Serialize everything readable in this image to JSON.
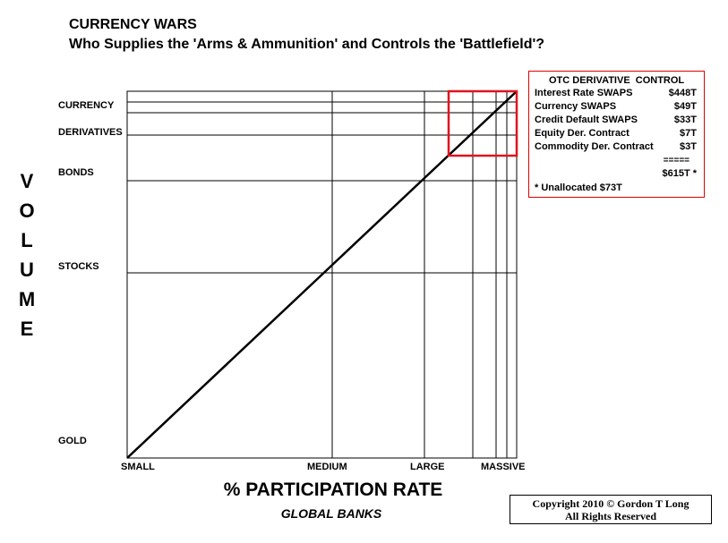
{
  "header": {
    "title": "CURRENCY WARS",
    "subtitle": "Who Supplies the 'Arms & Ammunition' and Controls the 'Battlefield'?"
  },
  "y_axis": {
    "title": "VOLUME",
    "labels": [
      "CURRENCY",
      "DERIVATIVES",
      "BONDS",
      "STOCKS",
      "GOLD"
    ]
  },
  "x_axis": {
    "title": "% PARTICIPATION RATE",
    "subtitle": "GLOBAL BANKS",
    "labels": [
      "SMALL",
      "MEDIUM",
      "LARGE",
      "MASSIVE"
    ]
  },
  "otc_box": {
    "title": "OTC DERIVATIVE  CONTROL",
    "rows": [
      [
        "Interest Rate SWAPS",
        "$448T"
      ],
      [
        "Currency SWAPS",
        "$49T"
      ],
      [
        "Credit Default SWAPS",
        "$33T"
      ],
      [
        "Equity Der. Contract",
        "$7T"
      ],
      [
        "Commodity Der. Contract",
        "$3T"
      ]
    ],
    "separator": "=====",
    "total": "$615T *",
    "note": "* Unallocated $73T"
  },
  "copyright": {
    "line1": "Copyright 2010 © Gordon T Long",
    "line2": "All Rights Reserved"
  }
}
